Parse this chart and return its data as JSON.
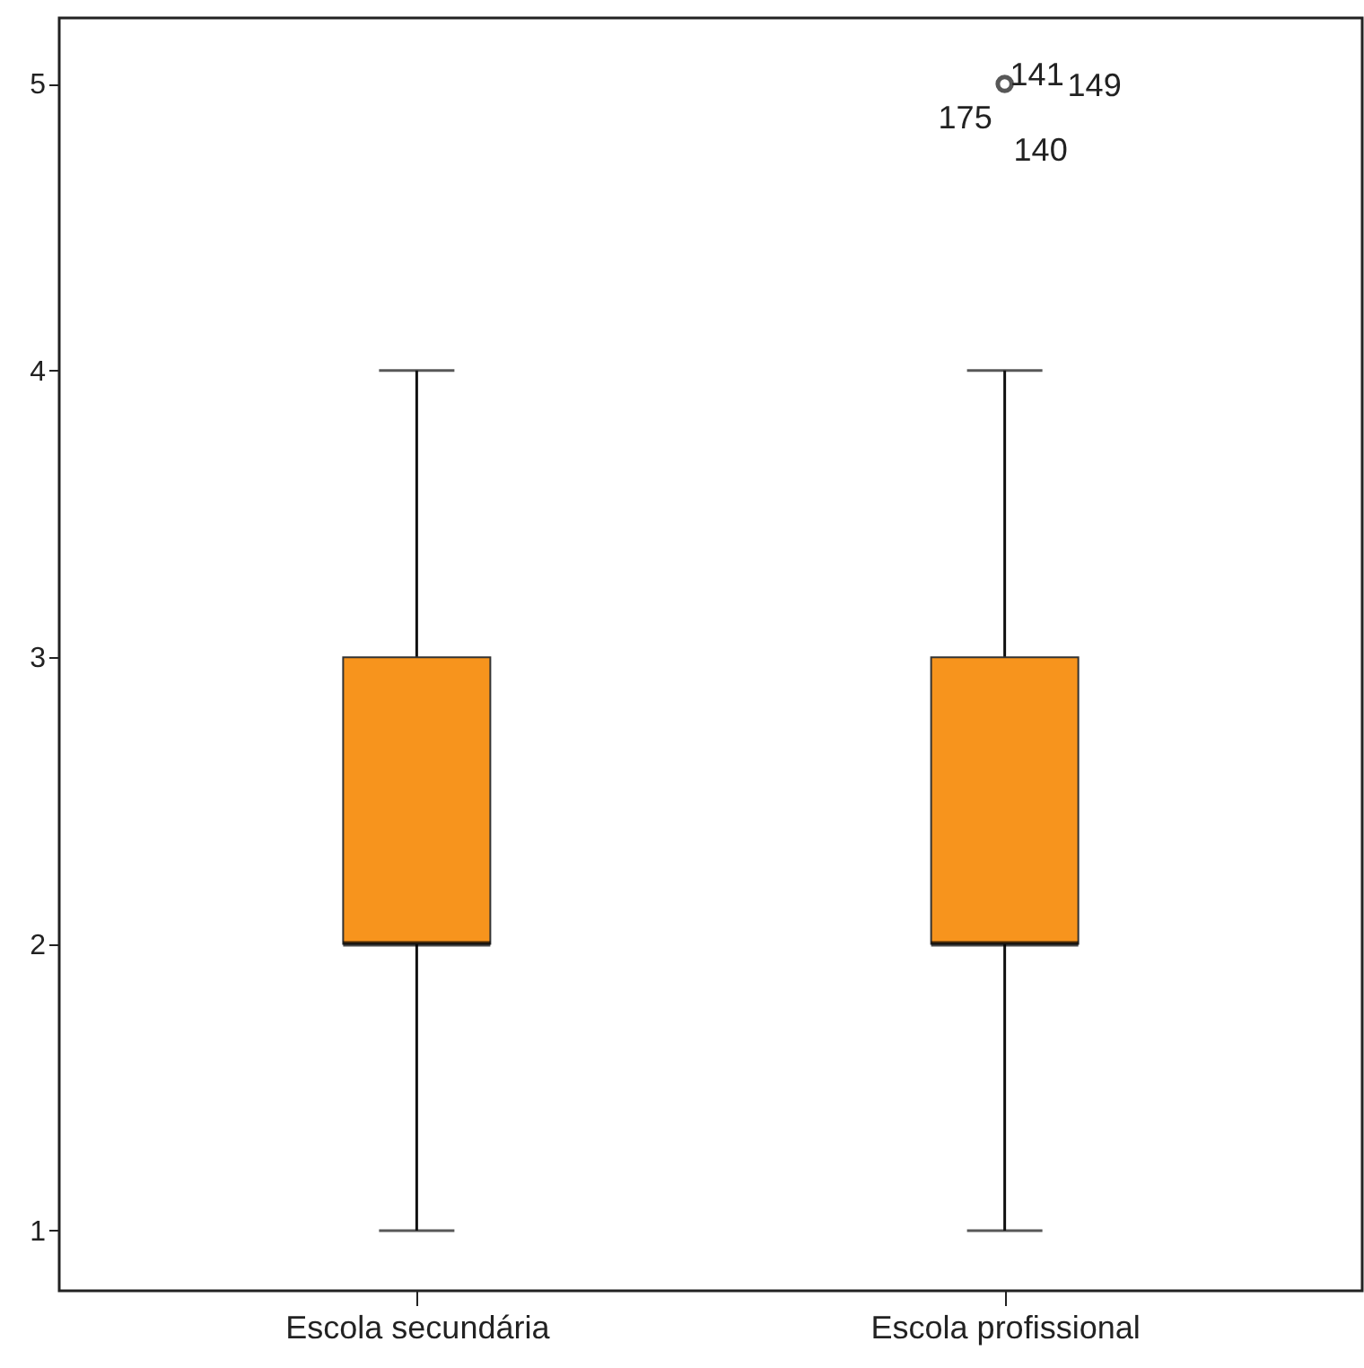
{
  "chart_data": {
    "type": "box",
    "categories": [
      "Escola secundária",
      "Escola profissional"
    ],
    "series": [
      {
        "color": "#f7941d",
        "boxes": [
          {
            "low": 1,
            "q1": 2,
            "median": 2,
            "q3": 3,
            "high": 4
          },
          {
            "low": 1,
            "q1": 2,
            "median": 2,
            "q3": 3,
            "high": 4,
            "outliers": [
              5
            ]
          }
        ]
      }
    ],
    "ylim": [
      0.79,
      5.23
    ],
    "yticks": [
      1,
      2,
      3,
      4,
      5
    ],
    "grid": false,
    "annotations": [
      "141",
      "149",
      "175",
      "140"
    ]
  }
}
